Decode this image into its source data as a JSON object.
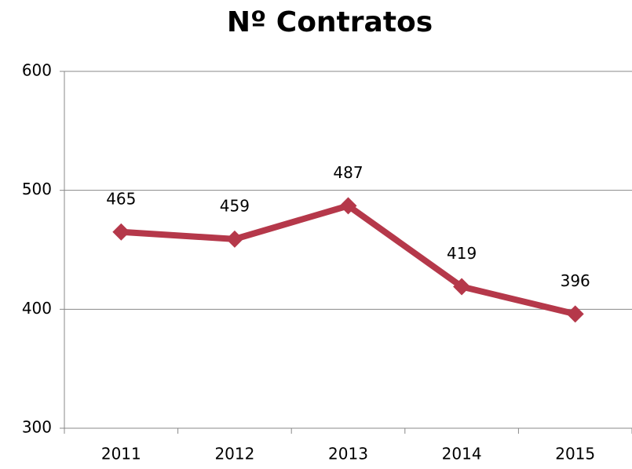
{
  "chart_data": {
    "type": "line",
    "title": "Nº Contratos",
    "categories": [
      "2011",
      "2012",
      "2013",
      "2014",
      "2015"
    ],
    "values": [
      465,
      459,
      487,
      419,
      396
    ],
    "color": "#b5384a",
    "ylim": [
      300,
      600
    ],
    "yticks": [
      300,
      400,
      500,
      600
    ],
    "grid": true
  }
}
